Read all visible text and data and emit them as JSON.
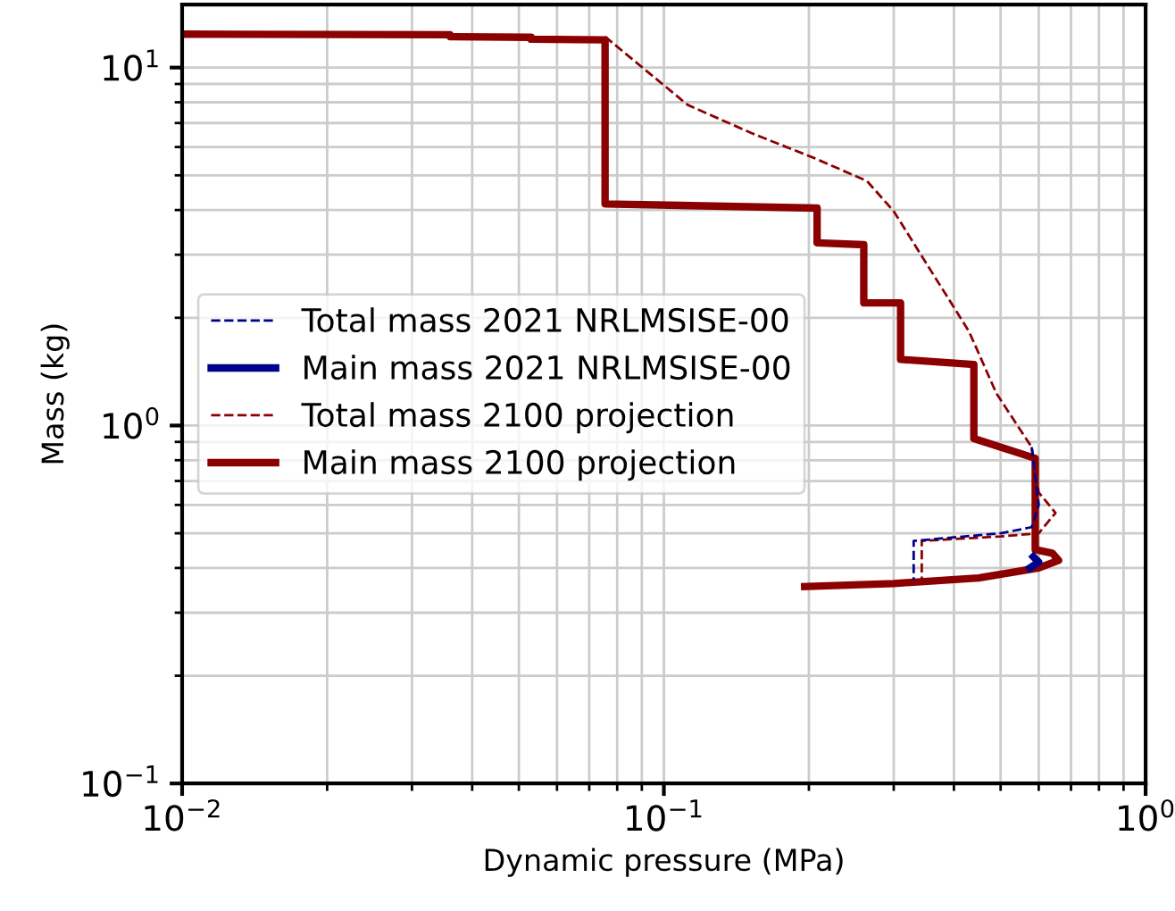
{
  "chart_data": {
    "type": "line",
    "xlabel": "Dynamic pressure (MPa)",
    "ylabel": "Mass (kg)",
    "log": "xy",
    "xlim": [
      0.01,
      1
    ],
    "ylim": [
      0.1,
      15
    ],
    "xticks": [
      {
        "value": 0.01,
        "label": "10$^{−2}$"
      },
      {
        "value": 0.1,
        "label": "10$^{−1}$"
      },
      {
        "value": 1,
        "label": "10$^{0}$"
      }
    ],
    "yticks": [
      {
        "value": 0.1,
        "label": "10$^{−1}$"
      },
      {
        "value": 1,
        "label": "10$^{0}$"
      },
      {
        "value": 10,
        "label": "10$^{1}$"
      }
    ],
    "grid": true,
    "legend": "left",
    "marker": "none",
    "series": [
      {
        "name": "Total mass 2021 NRLMSISE-00",
        "color": "#00008b",
        "line_style": "dashed",
        "x": [
          0.58,
          0.6,
          0.58,
          0.5,
          0.33,
          0.33
        ],
        "values": [
          0.87,
          0.6,
          0.52,
          0.5,
          0.476,
          0.37
        ]
      },
      {
        "name": "Main mass 2021 NRLMSISE-00",
        "color": "#00008b",
        "line_style": "solid",
        "x": [
          0.585,
          0.6,
          0.575
        ],
        "values": [
          0.43,
          0.415,
          0.4
        ]
      },
      {
        "name": "Total mass 2100 projection",
        "color": "#8b0000",
        "line_style": "dashed",
        "x": [
          0.0755,
          0.112,
          0.152,
          0.205,
          0.264,
          0.3,
          0.357,
          0.43,
          0.49,
          0.58,
          0.6,
          0.65,
          0.6,
          0.5,
          0.343,
          0.343
        ],
        "values": [
          12.2,
          7.87,
          6.56,
          5.59,
          4.82,
          3.97,
          2.73,
          1.83,
          1.23,
          0.87,
          0.65,
          0.57,
          0.5,
          0.49,
          0.476,
          0.37
        ]
      },
      {
        "name": "Main mass 2100 projection",
        "color": "#8b0000",
        "line_style": "solid",
        "x": [
          0.01,
          0.036,
          0.036,
          0.053,
          0.053,
          0.0755,
          0.0755,
          0.208,
          0.208,
          0.26,
          0.26,
          0.31,
          0.31,
          0.44,
          0.44,
          0.59,
          0.59,
          0.64,
          0.66,
          0.6,
          0.45,
          0.3,
          0.196
        ],
        "values": [
          12.4,
          12.35,
          12.2,
          12.15,
          12.0,
          11.95,
          4.16,
          4.05,
          3.24,
          3.2,
          2.2,
          2.2,
          1.53,
          1.48,
          0.92,
          0.81,
          0.45,
          0.44,
          0.42,
          0.4,
          0.375,
          0.362,
          0.355
        ]
      }
    ]
  }
}
